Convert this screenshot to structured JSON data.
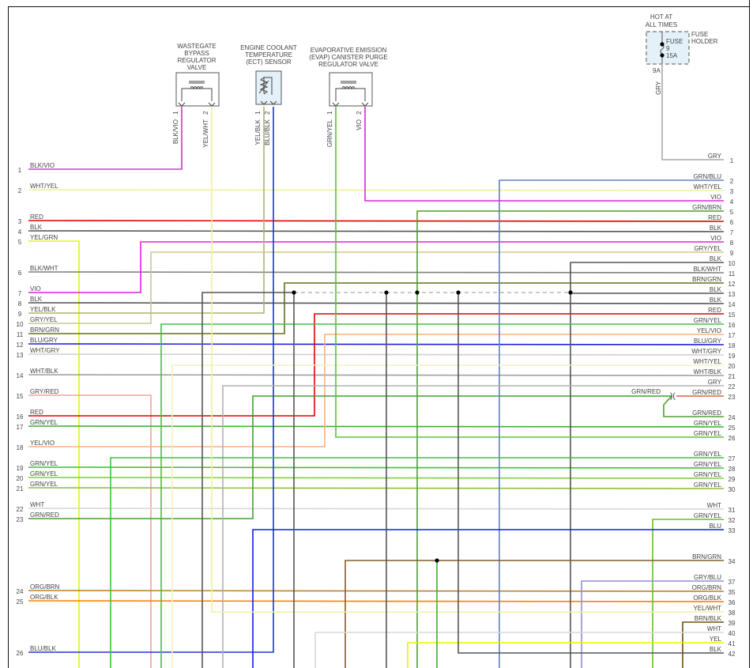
{
  "components": {
    "wastegate": {
      "title": [
        "WASTEGATE",
        "BYPASS",
        "REGULATOR",
        "VALVE"
      ],
      "pins": [
        "1",
        "2"
      ],
      "wires": [
        "BLK/VIO",
        "YEL/WHT"
      ]
    },
    "ect": {
      "title": [
        "ENGINE COOLANT",
        "TEMPERATURE",
        "(ECT) SENSOR"
      ],
      "pins": [
        "1",
        "2"
      ],
      "wires": [
        "YEL/BLK",
        "BLU/BLK"
      ]
    },
    "evap": {
      "title": [
        "EVAPORATIVE EMISSION",
        "(EVAP) CANISTER PURGE",
        "REGULATOR VALVE"
      ],
      "pins": [
        "1",
        "2"
      ],
      "wires": [
        "GRN/YEL",
        "VIO"
      ]
    },
    "fuse": {
      "hot": [
        "HOT AT",
        "ALL TIMES"
      ],
      "holder": [
        "FUSE",
        "HOLDER"
      ],
      "fuse_label": "FUSE",
      "fuse_num": "9",
      "rating": "15A",
      "pin": "9A",
      "wire": "GRY"
    }
  },
  "left_pins": [
    {
      "num": "1",
      "label": "BLK/VIO",
      "color": "#c040c0"
    },
    {
      "num": "2",
      "label": "WHT/YEL",
      "color": "#f0f0a0"
    },
    {
      "num": "3",
      "label": "RED",
      "color": "#e00000"
    },
    {
      "num": "4",
      "label": "BLK",
      "color": "#555555"
    },
    {
      "num": "5",
      "label": "YEL/GRN",
      "color": "#e0f020"
    },
    {
      "num": "6",
      "label": "BLK/WHT",
      "color": "#808080"
    },
    {
      "num": "7",
      "label": "VIO",
      "color": "#e020e0"
    },
    {
      "num": "8",
      "label": "BLK",
      "color": "#555555"
    },
    {
      "num": "9",
      "label": "YEL/BLK",
      "color": "#b0b070"
    },
    {
      "num": "10",
      "label": "GRY/YEL",
      "color": "#c8c890"
    },
    {
      "num": "11",
      "label": "BRN/GRN",
      "color": "#607020"
    },
    {
      "num": "12",
      "label": "BLU/GRY",
      "color": "#2020e0"
    },
    {
      "num": "13",
      "label": "WHT/GRY",
      "color": "#d0d0d0"
    },
    {
      "num": "14",
      "label": "WHT/BLK",
      "color": "#a0a0a0"
    },
    {
      "num": "15",
      "label": "GRY/RED",
      "color": "#f4a0a0"
    },
    {
      "num": "16",
      "label": "RED",
      "color": "#e00000"
    },
    {
      "num": "17",
      "label": "GRN/YEL",
      "color": "#40b030"
    },
    {
      "num": "18",
      "label": "YEL/VIO",
      "color": "#f8b080"
    },
    {
      "num": "19",
      "label": "GRN/YEL",
      "color": "#40c040"
    },
    {
      "num": "20",
      "label": "GRN/YEL",
      "color": "#80d040"
    },
    {
      "num": "21",
      "label": "GRN/YEL",
      "color": "#90c040"
    },
    {
      "num": "22",
      "label": "WHT",
      "color": "#d8d8d8"
    },
    {
      "num": "23",
      "label": "GRN/RED",
      "color": "#40a030"
    },
    {
      "num": "24",
      "label": "ORG/BRN",
      "color": "#c08030"
    },
    {
      "num": "25",
      "label": "ORG/BLK",
      "color": "#ff8000"
    },
    {
      "num": "26",
      "label": "BLU/BLK",
      "color": "#2030e0"
    }
  ],
  "right_pins": [
    {
      "num": "1",
      "label": "GRY",
      "color": "#a8a8a8"
    },
    {
      "num": "2",
      "label": "GRN/BLU",
      "color": "#6080c0"
    },
    {
      "num": "3",
      "label": "WHT/YEL",
      "color": "#f0f0a0"
    },
    {
      "num": "4",
      "label": "VIO",
      "color": "#e020e0"
    },
    {
      "num": "5",
      "label": "GRN/BRN",
      "color": "#50a020"
    },
    {
      "num": "6",
      "label": "RED",
      "color": "#e00000"
    },
    {
      "num": "7",
      "label": "BLK",
      "color": "#555555"
    },
    {
      "num": "8",
      "label": "VIO",
      "color": "#e020e0"
    },
    {
      "num": "9",
      "label": "GRY/YEL",
      "color": "#c8c890"
    },
    {
      "num": "10",
      "label": "BLK",
      "color": "#555555"
    },
    {
      "num": "11",
      "label": "BLK/WHT",
      "color": "#808080"
    },
    {
      "num": "12",
      "label": "BRN/GRN",
      "color": "#806020"
    },
    {
      "num": "13",
      "label": "BLK",
      "color": "#555555"
    },
    {
      "num": "14",
      "label": "BLK",
      "color": "#555555"
    },
    {
      "num": "15",
      "label": "RED",
      "color": "#ff2020"
    },
    {
      "num": "16",
      "label": "GRN/YEL",
      "color": "#40c040"
    },
    {
      "num": "17",
      "label": "YEL/VIO",
      "color": "#f0a0e0"
    },
    {
      "num": "18",
      "label": "BLU/GRY",
      "color": "#2020e0"
    },
    {
      "num": "19",
      "label": "WHT/GRY",
      "color": "#d0d0d0"
    },
    {
      "num": "20",
      "label": "WHT/YEL",
      "color": "#f0f0c0"
    },
    {
      "num": "21",
      "label": "WHT/BLK",
      "color": "#a0a0a0"
    },
    {
      "num": "22",
      "label": "GRY",
      "color": "#b0b0b0"
    },
    {
      "num": "23",
      "label": "GRN/RED",
      "color": "#e06040"
    },
    {
      "num": "24",
      "label": "GRN/RED",
      "color": "#50a030"
    },
    {
      "num": "25",
      "label": "GRN/YEL",
      "color": "#40b030"
    },
    {
      "num": "26",
      "label": "GRN/YEL",
      "color": "#60c030"
    },
    {
      "num": "27",
      "label": "GRN/YEL",
      "color": "#40c040"
    },
    {
      "num": "28",
      "label": "GRN/YEL",
      "color": "#40c040"
    },
    {
      "num": "29",
      "label": "GRN/YEL",
      "color": "#80d040"
    },
    {
      "num": "30",
      "label": "GRN/YEL",
      "color": "#90c040"
    },
    {
      "num": "31",
      "label": "WHT",
      "color": "#d8d8d8"
    },
    {
      "num": "32",
      "label": "GRN/YEL",
      "color": "#60c030"
    },
    {
      "num": "33",
      "label": "BLU",
      "color": "#1020e0"
    },
    {
      "num": "34",
      "label": "BRN/GRN",
      "color": "#806020"
    },
    {
      "num": "37",
      "label": "GRY/BLU",
      "color": "#9090d0"
    },
    {
      "num": "35",
      "label": "ORG/BRN",
      "color": "#c08030"
    },
    {
      "num": "36",
      "label": "ORG/BLK",
      "color": "#ff8000"
    },
    {
      "num": "38",
      "label": "YEL/WHT",
      "color": "#f0f0a0"
    },
    {
      "num": "39",
      "label": "BRN/BLK",
      "color": "#705010"
    },
    {
      "num": "40",
      "label": "WHT",
      "color": "#d8d8d8"
    },
    {
      "num": "41",
      "label": "YEL",
      "color": "#f0f000"
    },
    {
      "num": "42",
      "label": "BLK",
      "color": "#555555"
    }
  ],
  "splice_label": "GRN/RED"
}
